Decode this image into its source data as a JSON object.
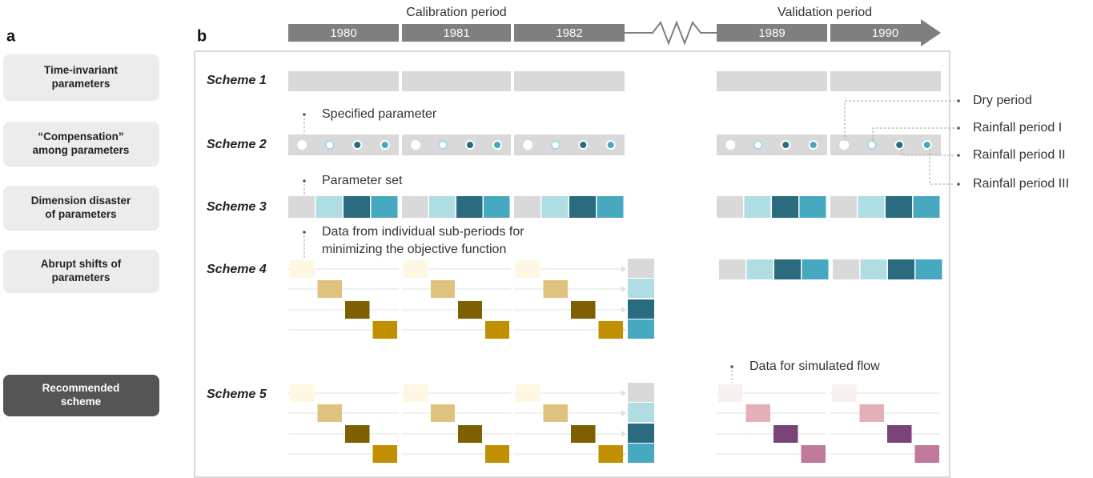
{
  "panels": {
    "a": "a",
    "b": "b"
  },
  "problems": [
    {
      "lines": [
        "Time-invariant",
        "parameters"
      ]
    },
    {
      "lines": [
        "“Compensation”",
        "among parameters"
      ]
    },
    {
      "lines": [
        "Dimension disaster",
        "of parameters"
      ]
    },
    {
      "lines": [
        "Abrupt shifts of",
        "parameters"
      ]
    },
    {
      "lines": [
        "Recommended",
        "scheme"
      ]
    }
  ],
  "timeline": {
    "calibration": "Calibration period",
    "validation": "Validation period",
    "years": [
      "1980",
      "1981",
      "1982",
      "1989",
      "1990"
    ]
  },
  "schemes": [
    "Scheme 1",
    "Scheme 2",
    "Scheme 3",
    "Scheme 4",
    "Scheme 5"
  ],
  "annotations": {
    "specified": "Specified parameter",
    "parameter_set": "Parameter set",
    "sub_periods": [
      "Data from individual sub-periods for",
      "minimizing the objective function"
    ],
    "simulated_flow": "Data for simulated flow"
  },
  "legend": [
    "Dry period",
    "Rainfall period I",
    "Rainfall period II",
    "Rainfall period III"
  ]
}
